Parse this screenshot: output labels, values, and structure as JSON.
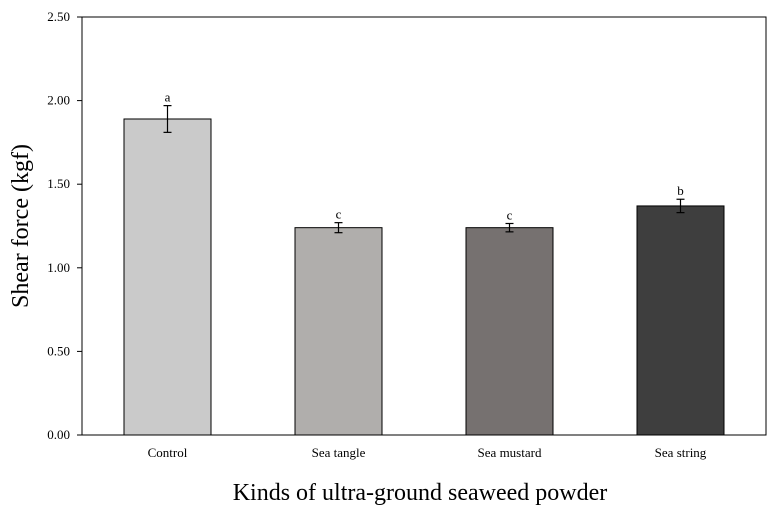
{
  "chart_data": {
    "type": "bar",
    "title": "",
    "xlabel": "Kinds of ultra-ground seaweed powder",
    "ylabel": "Shear force (kgf)",
    "ylim": [
      0,
      2.5
    ],
    "yticks": [
      "0.00",
      "0.50",
      "1.00",
      "1.50",
      "2.00",
      "2.50"
    ],
    "grid": false,
    "categories": [
      "Control",
      "Sea tangle",
      "Sea mustard",
      "Sea string"
    ],
    "values": [
      1.89,
      1.24,
      1.24,
      1.37
    ],
    "errors": [
      0.08,
      0.03,
      0.025,
      0.04
    ],
    "significance": [
      "a",
      "c",
      "c",
      "b"
    ],
    "bar_colors": [
      "#cacaca",
      "#b0aeac",
      "#767170",
      "#3e3e3e"
    ]
  }
}
